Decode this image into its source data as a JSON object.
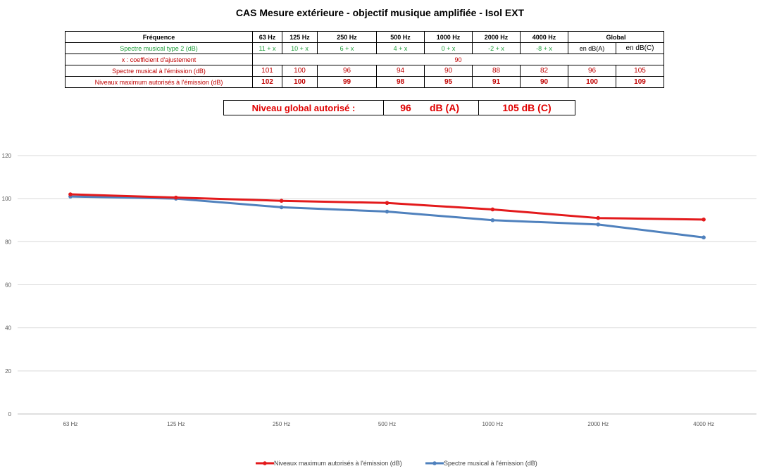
{
  "title": "CAS Mesure extérieure - objectif musique amplifiée - Isol EXT",
  "table": {
    "header_label": "Fréquence",
    "frequencies": [
      "63 Hz",
      "125 Hz",
      "250 Hz",
      "500 Hz",
      "1000 Hz",
      "2000 Hz",
      "4000 Hz"
    ],
    "global_label": "Global",
    "spectre_type_label": "Spectre musical type 2 (dB)",
    "spectre_type_values": [
      "11 + x",
      "10 + x",
      "6 + x",
      "4 + x",
      "0 + x",
      "-2 + x",
      "-8 + x"
    ],
    "global_a_label": "en dB(A)",
    "global_c_label": "en dB(C)",
    "coef_label": "x : coefficient d'ajustement",
    "coef_value": "90",
    "emission_label": "Spectre musical à l'émission (dB)",
    "emission_values": [
      "101",
      "100",
      "96",
      "94",
      "90",
      "88",
      "82"
    ],
    "emission_global_a": "96",
    "emission_global_c": "105",
    "max_label": "Niveaux maximum autorisés à l'émission (dB)",
    "max_values": [
      "102",
      "100",
      "99",
      "98",
      "95",
      "91",
      "90"
    ],
    "max_global_a": "100",
    "max_global_c": "109"
  },
  "global_box": {
    "label": "Niveau global autorisé :",
    "value_a": "96",
    "unit_a": "dB (A)",
    "value_c": "105 dB (C)"
  },
  "chart_data": {
    "type": "line",
    "categories": [
      "63 Hz",
      "125 Hz",
      "250 Hz",
      "500 Hz",
      "1000 Hz",
      "2000 Hz",
      "4000 Hz"
    ],
    "series": [
      {
        "name": "Niveaux maximum autorisés à l'émission (dB)",
        "values": [
          102,
          100.5,
          99,
          98,
          95,
          91,
          90.3
        ],
        "color": "#e31a1c"
      },
      {
        "name": "Spectre musical à l'émission (dB)",
        "values": [
          101,
          100,
          96,
          94,
          90,
          88,
          82
        ],
        "color": "#4f81bd"
      }
    ],
    "yticks": [
      0,
      20,
      40,
      60,
      80,
      100,
      120
    ],
    "ylim": [
      0,
      120
    ],
    "grid": true,
    "legend_position": "bottom"
  }
}
